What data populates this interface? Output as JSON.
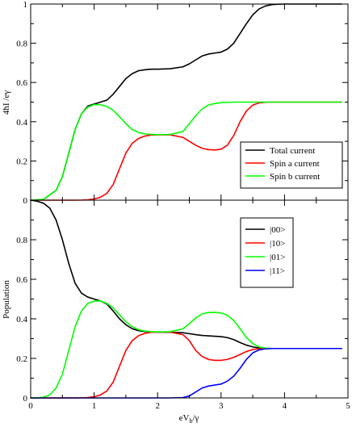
{
  "chart_data": [
    {
      "type": "line",
      "panel": "top",
      "title": "",
      "xlabel": "",
      "ylabel": "4ħI /eγ",
      "xlim": [
        0,
        5
      ],
      "ylim": [
        0,
        1
      ],
      "x_ticks": [
        0,
        1,
        2,
        3,
        4,
        5
      ],
      "x_tick_labels_shown": false,
      "y_ticks": [
        0,
        0.2,
        0.4,
        0.6,
        0.8,
        1
      ],
      "y_tick_labels": [
        "0",
        "0.2",
        "0.4",
        "0.6",
        "0.8",
        "1"
      ],
      "grid": false,
      "legend_position": "lower-right",
      "x": [
        0,
        0.2,
        0.4,
        0.5,
        0.6,
        0.7,
        0.8,
        0.9,
        1.0,
        1.1,
        1.2,
        1.3,
        1.4,
        1.5,
        1.6,
        1.7,
        1.8,
        1.9,
        2.0,
        2.2,
        2.4,
        2.5,
        2.6,
        2.7,
        2.8,
        2.9,
        3.0,
        3.1,
        3.2,
        3.3,
        3.4,
        3.5,
        3.6,
        3.7,
        3.8,
        3.9,
        4.0,
        4.5,
        4.9
      ],
      "series": [
        {
          "name": "Total current",
          "color": "#000000",
          "values": [
            0.0,
            0.004,
            0.05,
            0.12,
            0.24,
            0.36,
            0.44,
            0.48,
            0.49,
            0.5,
            0.51,
            0.54,
            0.58,
            0.62,
            0.645,
            0.66,
            0.665,
            0.668,
            0.668,
            0.67,
            0.68,
            0.695,
            0.715,
            0.735,
            0.745,
            0.75,
            0.755,
            0.77,
            0.8,
            0.85,
            0.9,
            0.945,
            0.975,
            0.99,
            0.997,
            0.999,
            1.0,
            1.0,
            1.0
          ]
        },
        {
          "name": "Spin a current",
          "color": "#ff0000",
          "values": [
            0.0,
            0.0,
            0.0,
            0.0,
            0.0,
            0.0,
            0.0005,
            0.002,
            0.006,
            0.015,
            0.035,
            0.08,
            0.16,
            0.24,
            0.29,
            0.315,
            0.327,
            0.332,
            0.333,
            0.333,
            0.32,
            0.3,
            0.28,
            0.265,
            0.258,
            0.256,
            0.26,
            0.28,
            0.33,
            0.4,
            0.455,
            0.485,
            0.496,
            0.499,
            0.5,
            0.5,
            0.5,
            0.5,
            0.5
          ]
        },
        {
          "name": "Spin b current",
          "color": "#00ff00",
          "values": [
            0.0,
            0.004,
            0.05,
            0.12,
            0.24,
            0.36,
            0.44,
            0.475,
            0.487,
            0.487,
            0.478,
            0.458,
            0.425,
            0.39,
            0.36,
            0.345,
            0.338,
            0.335,
            0.334,
            0.335,
            0.35,
            0.39,
            0.43,
            0.465,
            0.485,
            0.493,
            0.497,
            0.499,
            0.5,
            0.5,
            0.5,
            0.5,
            0.5,
            0.5,
            0.5,
            0.5,
            0.5,
            0.5,
            0.5
          ]
        }
      ]
    },
    {
      "type": "line",
      "panel": "bottom",
      "title": "",
      "xlabel": "eV_b/γ",
      "ylabel": "Population",
      "xlim": [
        0,
        5
      ],
      "ylim": [
        0,
        1
      ],
      "x_ticks": [
        0,
        1,
        2,
        3,
        4,
        5
      ],
      "x_tick_labels": [
        "0",
        "1",
        "2",
        "3",
        "4",
        "5"
      ],
      "y_ticks": [
        0,
        0.2,
        0.4,
        0.6,
        0.8
      ],
      "y_tick_labels": [
        "0",
        "0.2",
        "0.4",
        "0.6",
        "0.8"
      ],
      "grid": false,
      "legend_position": "upper-right",
      "x": [
        0,
        0.1,
        0.2,
        0.3,
        0.4,
        0.5,
        0.6,
        0.7,
        0.8,
        0.9,
        1.0,
        1.1,
        1.2,
        1.3,
        1.4,
        1.5,
        1.6,
        1.7,
        1.8,
        1.9,
        2.0,
        2.2,
        2.4,
        2.5,
        2.6,
        2.7,
        2.8,
        2.9,
        3.0,
        3.1,
        3.2,
        3.3,
        3.4,
        3.5,
        3.6,
        3.7,
        3.8,
        3.9,
        4.0,
        4.5,
        4.9
      ],
      "series": [
        {
          "name": "|00>",
          "color": "#000000",
          "values": [
            1.0,
            0.995,
            0.985,
            0.96,
            0.9,
            0.8,
            0.68,
            0.58,
            0.53,
            0.51,
            0.5,
            0.49,
            0.475,
            0.44,
            0.4,
            0.37,
            0.35,
            0.34,
            0.336,
            0.334,
            0.333,
            0.332,
            0.33,
            0.325,
            0.32,
            0.316,
            0.314,
            0.312,
            0.31,
            0.305,
            0.295,
            0.28,
            0.267,
            0.258,
            0.253,
            0.251,
            0.25,
            0.25,
            0.25,
            0.25,
            0.25
          ]
        },
        {
          "name": "|10>",
          "color": "#ff0000",
          "values": [
            0.0,
            0.0,
            0.0,
            0.0,
            0.0,
            0.0,
            0.0,
            0.0,
            0.0005,
            0.002,
            0.006,
            0.015,
            0.035,
            0.08,
            0.16,
            0.24,
            0.29,
            0.315,
            0.327,
            0.332,
            0.333,
            0.333,
            0.32,
            0.29,
            0.24,
            0.21,
            0.195,
            0.19,
            0.19,
            0.195,
            0.205,
            0.22,
            0.235,
            0.245,
            0.249,
            0.25,
            0.25,
            0.25,
            0.25,
            0.25,
            0.25
          ]
        },
        {
          "name": "|01>",
          "color": "#00ff00",
          "values": [
            0.0,
            0.0,
            0.004,
            0.015,
            0.05,
            0.12,
            0.24,
            0.36,
            0.44,
            0.478,
            0.49,
            0.49,
            0.478,
            0.455,
            0.42,
            0.385,
            0.36,
            0.345,
            0.338,
            0.335,
            0.334,
            0.335,
            0.35,
            0.375,
            0.405,
            0.425,
            0.432,
            0.433,
            0.43,
            0.418,
            0.392,
            0.35,
            0.305,
            0.275,
            0.258,
            0.252,
            0.25,
            0.25,
            0.25,
            0.25,
            0.25
          ]
        },
        {
          "name": "|11>",
          "color": "#0000ff",
          "values": [
            0.0,
            0.0,
            0.0,
            0.0,
            0.0,
            0.0,
            0.0,
            0.0,
            0.0,
            0.0,
            0.0,
            0.0,
            0.0,
            0.0,
            0.0,
            0.0,
            0.0,
            0.0,
            0.0,
            0.0,
            0.0,
            0.0,
            0.002,
            0.01,
            0.03,
            0.05,
            0.06,
            0.065,
            0.07,
            0.085,
            0.11,
            0.15,
            0.195,
            0.228,
            0.243,
            0.248,
            0.25,
            0.25,
            0.25,
            0.25,
            0.25
          ]
        }
      ]
    }
  ]
}
